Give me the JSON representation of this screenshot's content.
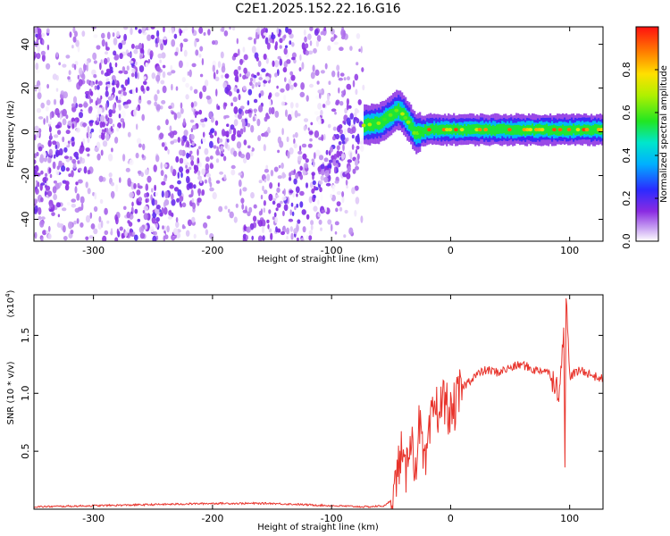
{
  "title": "C2E1.2025.152.22.16.G16",
  "colors": {
    "snr_line": "#e8332b",
    "axis": "#000000",
    "background": "#ffffff"
  },
  "chart_data": [
    {
      "type": "heatmap",
      "title": "C2E1.2025.152.22.16.G16",
      "xlabel": "Height of straight line (km)",
      "ylabel": "Frequency (Hz)",
      "xlim": [
        -350,
        128
      ],
      "ylim": [
        -50,
        48
      ],
      "x_ticks": [
        -300,
        -200,
        -100,
        0,
        100
      ],
      "y_ticks": [
        -40,
        -20,
        0,
        20,
        40
      ],
      "colorbar": {
        "label": "Normalized spectral amplitude",
        "range": [
          0.0,
          1.0
        ],
        "ticks": [
          0.0,
          0.2,
          0.4,
          0.6,
          0.8
        ],
        "colormap": "rainbow (white-purple-blue-cyan-green-yellow-red)"
      },
      "features": {
        "noise_region_x": [
          -350,
          -73
        ],
        "noise_level_range": [
          0.0,
          0.2
        ],
        "signal_region_x": [
          -73,
          128
        ],
        "signal_center_freq": [
          [
            -72,
            3
          ],
          [
            -60,
            4
          ],
          [
            -52,
            7
          ],
          [
            -45,
            10
          ],
          [
            -40,
            8
          ],
          [
            -35,
            4
          ],
          [
            -30,
            -1
          ],
          [
            -20,
            1
          ],
          [
            -10,
            1
          ],
          [
            0,
            1
          ],
          [
            20,
            1
          ],
          [
            40,
            1
          ],
          [
            60,
            1
          ],
          [
            80,
            1
          ],
          [
            100,
            1
          ],
          [
            128,
            1
          ]
        ],
        "signal_peak_amplitude": 0.95
      }
    },
    {
      "type": "line",
      "xlabel": "Height of straight line (km)",
      "ylabel": "SNR (10 * v/v)",
      "y_scale_label": "(x10",
      "y_scale_exponent": "4",
      "xlim": [
        -350,
        128
      ],
      "ylim": [
        0,
        1.85
      ],
      "x_ticks": [
        -300,
        -200,
        -100,
        0,
        100
      ],
      "y_ticks": [
        0.5,
        1.0,
        1.5
      ],
      "series": [
        {
          "color": "#e8332b",
          "x": [
            -350,
            -300,
            -250,
            -200,
            -150,
            -100,
            -70,
            -55,
            -48,
            -42,
            -38,
            -34,
            -30,
            -26,
            -22,
            -18,
            -14,
            -10,
            -5,
            0,
            10,
            20,
            30,
            40,
            50,
            60,
            70,
            80,
            88,
            92,
            95,
            96,
            97,
            100,
            110,
            120,
            128
          ],
          "y": [
            0.02,
            0.03,
            0.04,
            0.05,
            0.05,
            0.03,
            0.02,
            0.03,
            0.1,
            0.5,
            0.25,
            0.7,
            0.35,
            0.75,
            0.3,
            0.6,
            0.9,
            0.85,
            0.95,
            0.8,
            1.05,
            1.15,
            1.2,
            1.18,
            1.22,
            1.25,
            1.2,
            1.2,
            1.1,
            1.0,
            1.65,
            0.45,
            1.8,
            1.15,
            1.2,
            1.15,
            1.12
          ]
        }
      ]
    }
  ]
}
